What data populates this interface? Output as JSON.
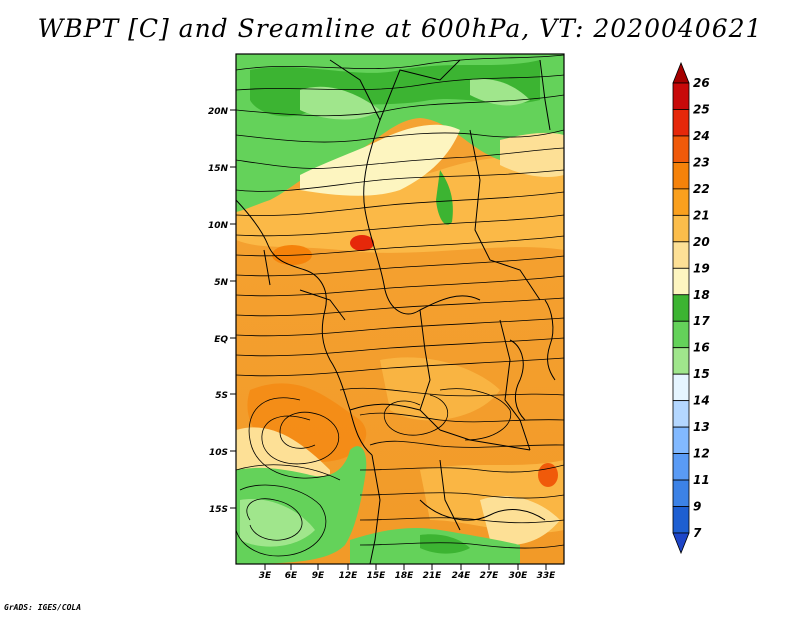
{
  "title": "WBPT [C] and Sreamline at 600hPa, VT: 2020040621",
  "credit": "GrADS: IGES/COLA",
  "lat_ticks": [
    "20N",
    "15N",
    "10N",
    "5N",
    "EQ",
    "5S",
    "10S",
    "15S"
  ],
  "lon_ticks": [
    "3E",
    "6E",
    "9E",
    "12E",
    "15E",
    "18E",
    "21E",
    "24E",
    "27E",
    "30E",
    "33E"
  ],
  "colorbar": {
    "labels": [
      "26",
      "25",
      "24",
      "23",
      "22",
      "21",
      "20",
      "19",
      "18",
      "17",
      "16",
      "15",
      "14",
      "13",
      "12",
      "11",
      "9",
      "7"
    ],
    "colors": [
      "#a50000",
      "#c80a0a",
      "#e6280a",
      "#f05a0a",
      "#f5820a",
      "#faa01e",
      "#fbbd4b",
      "#fde096",
      "#fdf5c0",
      "#3cb432",
      "#64d25a",
      "#a0e68c",
      "#e6f5ff",
      "#b4d7ff",
      "#82b9ff",
      "#5a9bf5",
      "#3c82e6",
      "#1e5fd2",
      "#1e46c8"
    ]
  },
  "icons": {
    "arrow": "streamline-arrow-icon"
  }
}
